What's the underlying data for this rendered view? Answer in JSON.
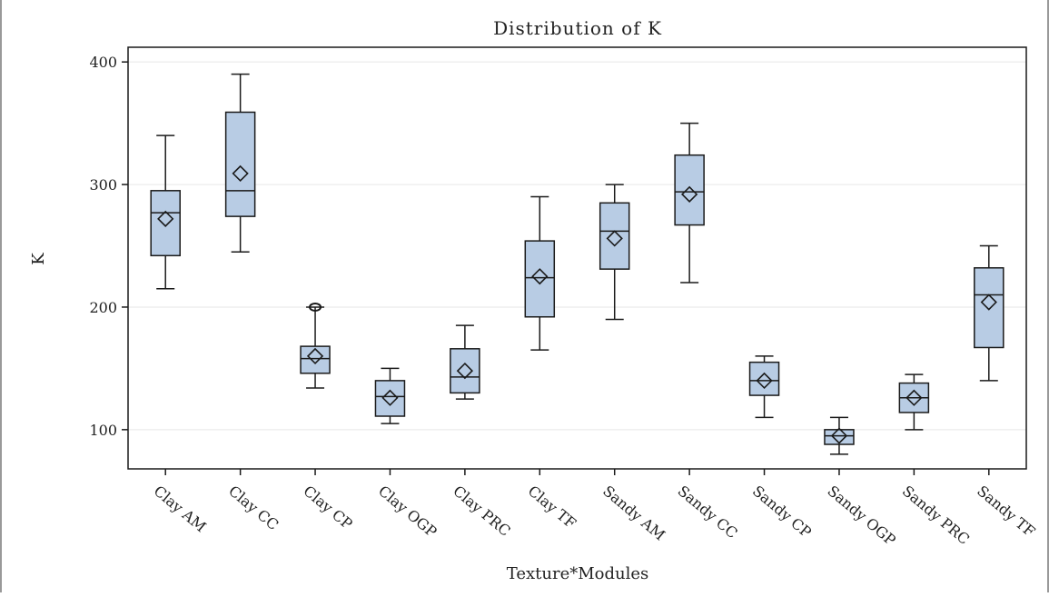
{
  "chart_data": {
    "type": "box",
    "title": "Distribution of K",
    "xlabel": "Texture*Modules",
    "ylabel": "K",
    "ylim": [
      68,
      412
    ],
    "yticks": [
      100,
      200,
      300,
      400
    ],
    "grid": true,
    "legend": "none",
    "categories": [
      "Clay AM",
      "Clay CC",
      "Clay CP",
      "Clay OGP",
      "Clay PRC",
      "Clay TF",
      "Sandy AM",
      "Sandy CC",
      "Sandy CP",
      "Sandy OGP",
      "Sandy PRC",
      "Sandy TF"
    ],
    "series": [
      {
        "values": [
          {
            "min": 215,
            "q1": 242,
            "median": 277,
            "q3": 295,
            "max": 340,
            "mean": 272,
            "outliers": []
          },
          {
            "min": 245,
            "q1": 274,
            "median": 295,
            "q3": 359,
            "max": 390,
            "mean": 309,
            "outliers": []
          },
          {
            "min": 134,
            "q1": 146,
            "median": 158,
            "q3": 168,
            "max": 200,
            "mean": 160,
            "outliers": [
              200
            ]
          },
          {
            "min": 105,
            "q1": 111,
            "median": 127,
            "q3": 140,
            "max": 150,
            "mean": 126,
            "outliers": []
          },
          {
            "min": 125,
            "q1": 130,
            "median": 143,
            "q3": 166,
            "max": 185,
            "mean": 148,
            "outliers": []
          },
          {
            "min": 165,
            "q1": 192,
            "median": 224,
            "q3": 254,
            "max": 290,
            "mean": 225,
            "outliers": []
          },
          {
            "min": 190,
            "q1": 231,
            "median": 262,
            "q3": 285,
            "max": 300,
            "mean": 256,
            "outliers": []
          },
          {
            "min": 220,
            "q1": 267,
            "median": 294,
            "q3": 324,
            "max": 350,
            "mean": 292,
            "outliers": []
          },
          {
            "min": 110,
            "q1": 128,
            "median": 140,
            "q3": 155,
            "max": 160,
            "mean": 140,
            "outliers": []
          },
          {
            "min": 80,
            "q1": 88,
            "median": 95,
            "q3": 100,
            "max": 110,
            "mean": 95,
            "outliers": []
          },
          {
            "min": 100,
            "q1": 114,
            "median": 126,
            "q3": 138,
            "max": 145,
            "mean": 126,
            "outliers": []
          },
          {
            "min": 140,
            "q1": 167,
            "median": 210,
            "q3": 232,
            "max": 250,
            "mean": 204,
            "outliers": []
          }
        ]
      }
    ],
    "colors": {
      "box_fill": "#b8cce4",
      "stroke": "#1a1a1a",
      "grid": "#e6e6e6"
    }
  }
}
